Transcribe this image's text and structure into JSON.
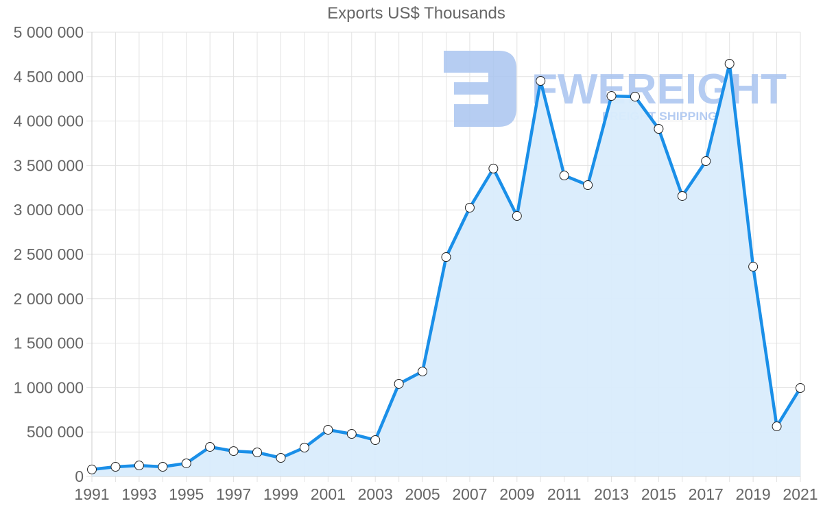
{
  "chart_data": {
    "type": "line",
    "title": "Exports US$ Thousands",
    "xlabel": "",
    "ylabel": "",
    "ylim": [
      0,
      5000000
    ],
    "yticks": [
      0,
      500000,
      1000000,
      1500000,
      2000000,
      2500000,
      3000000,
      3500000,
      4000000,
      4500000,
      5000000
    ],
    "ytick_labels": [
      "0",
      "500 000",
      "1 000 000",
      "1 500 000",
      "2 000 000",
      "2 500 000",
      "3 000 000",
      "3 500 000",
      "4 000 000",
      "4 500 000",
      "5 000 000"
    ],
    "xtick_labels": [
      "1991",
      "1993",
      "1995",
      "1997",
      "1999",
      "2001",
      "2003",
      "2005",
      "2007",
      "2009",
      "2011",
      "2013",
      "2015",
      "2017",
      "2019",
      "2021"
    ],
    "grid": true,
    "legend": null,
    "x": [
      1991,
      1992,
      1993,
      1994,
      1995,
      1996,
      1997,
      1998,
      1999,
      2000,
      2001,
      2002,
      2003,
      2004,
      2005,
      2006,
      2007,
      2008,
      2009,
      2010,
      2011,
      2012,
      2013,
      2014,
      2015,
      2016,
      2017,
      2018,
      2019,
      2020,
      2021
    ],
    "series": [
      {
        "name": "Exports US$ Thousands",
        "values": [
          78000,
          108000,
          123000,
          108000,
          147000,
          332000,
          285000,
          270000,
          208000,
          324000,
          525000,
          478000,
          409000,
          1042000,
          1181000,
          2469000,
          3025000,
          3465000,
          2932000,
          4452000,
          3387000,
          3279000,
          4282000,
          4275000,
          3912000,
          3156000,
          3549000,
          4645000,
          2361000,
          563000,
          995000
        ],
        "line_color": "#1a8fe8",
        "fill_color": "#d9ecfc",
        "marker_fill": "#ffffff",
        "marker_stroke": "#222222"
      }
    ]
  },
  "watermark": {
    "brand": "FWEREIGHT",
    "tagline": "FREIGHT SHIPPING",
    "color": "#a9c4f0"
  },
  "colors": {
    "grid": "#e2e2e2",
    "axis": "#cccccc",
    "text": "#666666"
  }
}
